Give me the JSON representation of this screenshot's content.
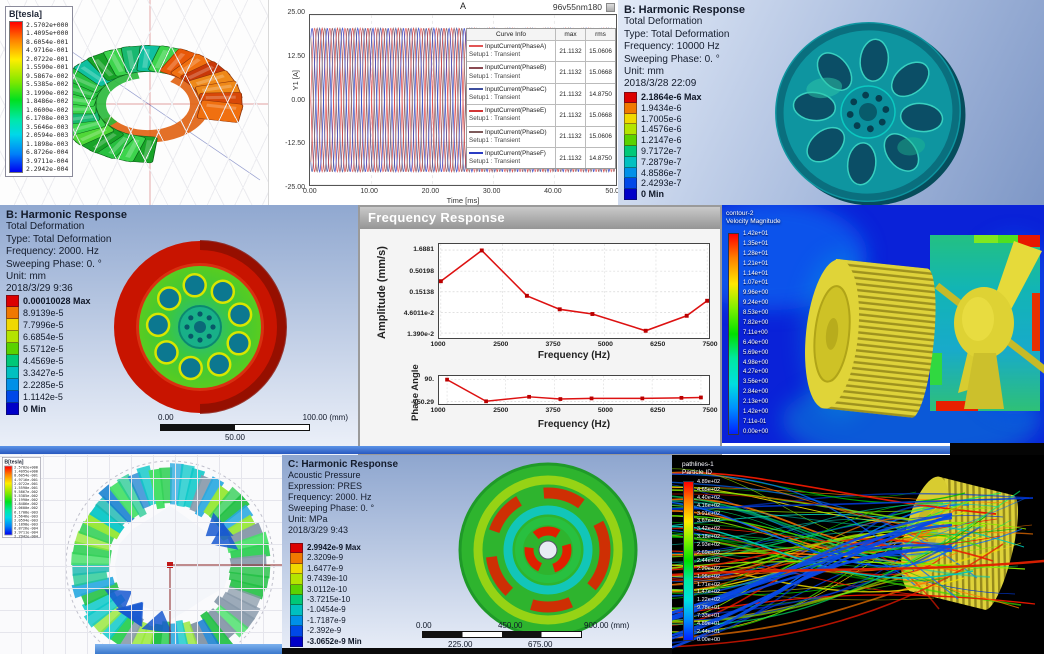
{
  "colors": {
    "ansys_bands": [
      "#dc0000",
      "#f07800",
      "#f0d800",
      "#b4e400",
      "#5ad200",
      "#00c878",
      "#00c0c0",
      "#0090e8",
      "#0048e8",
      "#0000c8"
    ]
  },
  "p1": {
    "legend_title": "B[tesla]",
    "legend_values": [
      "2.5702e+000",
      "1.4095e+000",
      "8.6054e-001",
      "4.9716e-001",
      "2.0722e-001",
      "1.5590e-001",
      "9.5867e-002",
      "5.5385e-002",
      "3.1990e-002",
      "1.8486e-002",
      "1.0600e-002",
      "6.1708e-003",
      "3.5646e-003",
      "2.0594e-003",
      "1.1898e-003",
      "6.8726e-004",
      "3.9711e-004",
      "2.2942e-004"
    ]
  },
  "p2": {
    "title": "A",
    "badge": "96v55nm180",
    "ylabel": "Y1 [A]",
    "xlabel": "Time [ms]",
    "yticks": [
      "25.00",
      "12.50",
      "0.00",
      "-12.50",
      "-25.00"
    ],
    "xticks": [
      "0.00",
      "10.00",
      "20.00",
      "30.00",
      "40.00",
      "50.00"
    ],
    "table": {
      "headers": [
        "Curve Info",
        "max",
        "rms"
      ],
      "rows": [
        {
          "label": "InputCurrent(PhaseA)",
          "sub": "Setup1 : Transient",
          "max": "21.1132",
          "rms": "15.0606",
          "color": "#e25555"
        },
        {
          "label": "InputCurrent(PhaseB)",
          "sub": "Setup1 : Transient",
          "max": "21.1132",
          "rms": "15.0668",
          "color": "#8a4a52"
        },
        {
          "label": "InputCurrent(PhaseC)",
          "sub": "Setup1 : Transient",
          "max": "21.1132",
          "rms": "14.8750",
          "color": "#3d4e9e"
        },
        {
          "label": "InputCurrent(PhaseE)",
          "sub": "Setup1 : Transient",
          "max": "21.1132",
          "rms": "15.0668",
          "color": "#d23535"
        },
        {
          "label": "InputCurrent(PhaseD)",
          "sub": "Setup1 : Transient",
          "max": "21.1132",
          "rms": "15.0606",
          "color": "#7d5a5a"
        },
        {
          "label": "InputCurrent(PhaseF)",
          "sub": "Setup1 : Transient",
          "max": "21.1132",
          "rms": "14.8750",
          "color": "#2a3cc4"
        }
      ]
    },
    "chart": {
      "amplitude": 21.1132,
      "period_ms": 2.5,
      "t_end_ms": 50,
      "phases_deg": [
        0,
        60,
        120,
        180,
        240,
        300
      ]
    }
  },
  "p3": {
    "info": [
      "B: Harmonic Response",
      "Total Deformation",
      "Type: Total Deformation",
      "Frequency: 10000 Hz",
      "Sweeping Phase: 0. °",
      "Unit: mm",
      "2018/3/28 22:09"
    ],
    "legend_labels": [
      "2.1864e-6 Max",
      "1.9434e-6",
      "1.7005e-6",
      "1.4576e-6",
      "1.2147e-6",
      "9.7172e-7",
      "7.2879e-7",
      "4.8586e-7",
      "2.4293e-7",
      "0 Min"
    ]
  },
  "p4": {
    "info": [
      "B: Harmonic Response",
      "Total Deformation",
      "Type: Total Deformation",
      "Frequency: 2000. Hz",
      "Sweeping Phase: 0. °",
      "Unit: mm",
      "2018/3/29 9:36"
    ],
    "legend_labels": [
      "0.00010028 Max",
      "8.9139e-5",
      "7.7996e-5",
      "6.6854e-5",
      "5.5712e-5",
      "4.4569e-5",
      "3.3427e-5",
      "2.2285e-5",
      "1.1142e-5",
      "0 Min"
    ],
    "ruler": {
      "a": "0.00",
      "b": "100.00 (mm)",
      "c": "50.00"
    }
  },
  "p5": {
    "window_title": "Frequency Response",
    "amp": {
      "ylabel": "Amplitude (mm/s)",
      "yticks": [
        "1.6881",
        "0.50198",
        "0.15138",
        "4.6011e-2",
        "1.390e-2"
      ],
      "xticks": [
        "1000",
        "2500",
        "3750",
        "5000",
        "6250",
        "7500"
      ],
      "xlabel": "Frequency (Hz)",
      "x": [
        1000,
        2000,
        3100,
        3900,
        4700,
        6000,
        7000,
        7500
      ],
      "y": [
        0.28,
        1.65,
        0.12,
        0.055,
        0.042,
        0.016,
        0.038,
        0.09
      ]
    },
    "phase": {
      "ylabel": "Phase Angle",
      "yticks": [
        "90.",
        "-150.29"
      ],
      "xticks": [
        "1000",
        "2500",
        "3750",
        "5000",
        "6250",
        "7500"
      ],
      "xlabel": "Frequency (Hz)",
      "x": [
        1000,
        2000,
        3100,
        3900,
        4700,
        6000,
        7000,
        7500
      ],
      "y": [
        90,
        -150,
        -100,
        -125,
        -118,
        -118,
        -112,
        -108
      ]
    }
  },
  "p6": {
    "legend_title": [
      "contour-2",
      "Velocity Magnitude"
    ],
    "legend_values": [
      "1.42e+01",
      "1.35e+01",
      "1.28e+01",
      "1.21e+01",
      "1.14e+01",
      "1.07e+01",
      "9.96e+00",
      "9.24e+00",
      "8.53e+00",
      "7.82e+00",
      "7.11e+00",
      "6.40e+00",
      "5.69e+00",
      "4.98e+00",
      "4.27e+00",
      "3.56e+00",
      "2.84e+00",
      "2.13e+00",
      "1.42e+00",
      "7.11e-01",
      "0.00e+00"
    ]
  },
  "p7": {
    "legend_title": "B[tesla]",
    "legend_values": [
      "2.5702e+000",
      "1.4095e+000",
      "8.6054e-001",
      "4.9716e-001",
      "2.0722e-001",
      "1.5590e-001",
      "9.5867e-002",
      "5.5385e-002",
      "3.1990e-002",
      "1.8486e-002",
      "1.0600e-002",
      "6.1708e-003",
      "3.5646e-003",
      "2.0594e-003",
      "1.1898e-003",
      "6.8726e-004",
      "3.9711e-004",
      "2.2942e-004"
    ]
  },
  "p8": {
    "info": [
      "C: Harmonic Response",
      "Acoustic Pressure",
      "Expression: PRES",
      "Frequency: 2000. Hz",
      "Sweeping Phase: 0. °",
      "Unit: MPa",
      "2018/3/29 9:43"
    ],
    "legend_labels": [
      "2.9942e-9 Max",
      "2.3209e-9",
      "1.6477e-9",
      "9.7439e-10",
      "3.0112e-10",
      "-3.7215e-10",
      "-1.0454e-9",
      "-1.7187e-9",
      "-2.392e-9",
      "-3.0652e-9 Min"
    ],
    "ruler": {
      "a": "0.00",
      "b": "450.00",
      "c": "900.00 (mm)",
      "d": "225.00",
      "e": "675.00"
    }
  },
  "p9": {
    "legend_title": [
      "pathlines-1",
      "Particle ID"
    ],
    "legend_values": [
      "4.89e+02",
      "4.65e+02",
      "4.40e+02",
      "4.16e+02",
      "3.91e+02",
      "3.67e+02",
      "3.42e+02",
      "3.18e+02",
      "2.93e+02",
      "2.69e+02",
      "2.44e+02",
      "2.20e+02",
      "1.96e+02",
      "1.71e+02",
      "1.47e+02",
      "1.22e+02",
      "9.78e+01",
      "7.33e+01",
      "4.89e+01",
      "2.44e+01",
      "0.00e+00"
    ]
  },
  "chart_data": [
    {
      "type": "line",
      "title": "A",
      "subtitle": "96v55nm180",
      "xlabel": "Time [ms]",
      "ylabel": "Y1 [A]",
      "xlim": [
        0,
        50
      ],
      "ylim": [
        -25,
        25
      ],
      "grid": true,
      "legend_position": "right",
      "series": [
        {
          "name": "InputCurrent(PhaseA) Setup1 : Transient",
          "amplitude": 21.1132,
          "period_ms": 2.5,
          "phase_deg": 0,
          "max": 21.1132,
          "rms": 15.0606
        },
        {
          "name": "InputCurrent(PhaseB) Setup1 : Transient",
          "amplitude": 21.1132,
          "period_ms": 2.5,
          "phase_deg": 60,
          "max": 21.1132,
          "rms": 15.0668
        },
        {
          "name": "InputCurrent(PhaseC) Setup1 : Transient",
          "amplitude": 21.1132,
          "period_ms": 2.5,
          "phase_deg": 120,
          "max": 21.1132,
          "rms": 14.875
        },
        {
          "name": "InputCurrent(PhaseE) Setup1 : Transient",
          "amplitude": 21.1132,
          "period_ms": 2.5,
          "phase_deg": 180,
          "max": 21.1132,
          "rms": 15.0668
        },
        {
          "name": "InputCurrent(PhaseD) Setup1 : Transient",
          "amplitude": 21.1132,
          "period_ms": 2.5,
          "phase_deg": 240,
          "max": 21.1132,
          "rms": 15.0606
        },
        {
          "name": "InputCurrent(PhaseF) Setup1 : Transient",
          "amplitude": 21.1132,
          "period_ms": 2.5,
          "phase_deg": 300,
          "max": 21.1132,
          "rms": 14.875
        }
      ]
    },
    {
      "type": "line",
      "title": "Frequency Response — Amplitude",
      "xlabel": "Frequency (Hz)",
      "ylabel": "Amplitude (mm/s)",
      "y_scale": "log",
      "yticks": [
        1.6881,
        0.50198,
        0.15138,
        0.046011,
        0.0139
      ],
      "x": [
        1000,
        2000,
        3100,
        3900,
        4700,
        6000,
        7000,
        7500
      ],
      "y": [
        0.28,
        1.65,
        0.12,
        0.055,
        0.042,
        0.016,
        0.038,
        0.09
      ]
    },
    {
      "type": "line",
      "title": "Frequency Response — Phase Angle",
      "xlabel": "Frequency (Hz)",
      "ylabel": "Phase Angle",
      "yticks": [
        90,
        -150.29
      ],
      "x": [
        1000,
        2000,
        3100,
        3900,
        4700,
        6000,
        7000,
        7500
      ],
      "y": [
        90,
        -150,
        -100,
        -125,
        -118,
        -118,
        -112,
        -108
      ]
    }
  ]
}
